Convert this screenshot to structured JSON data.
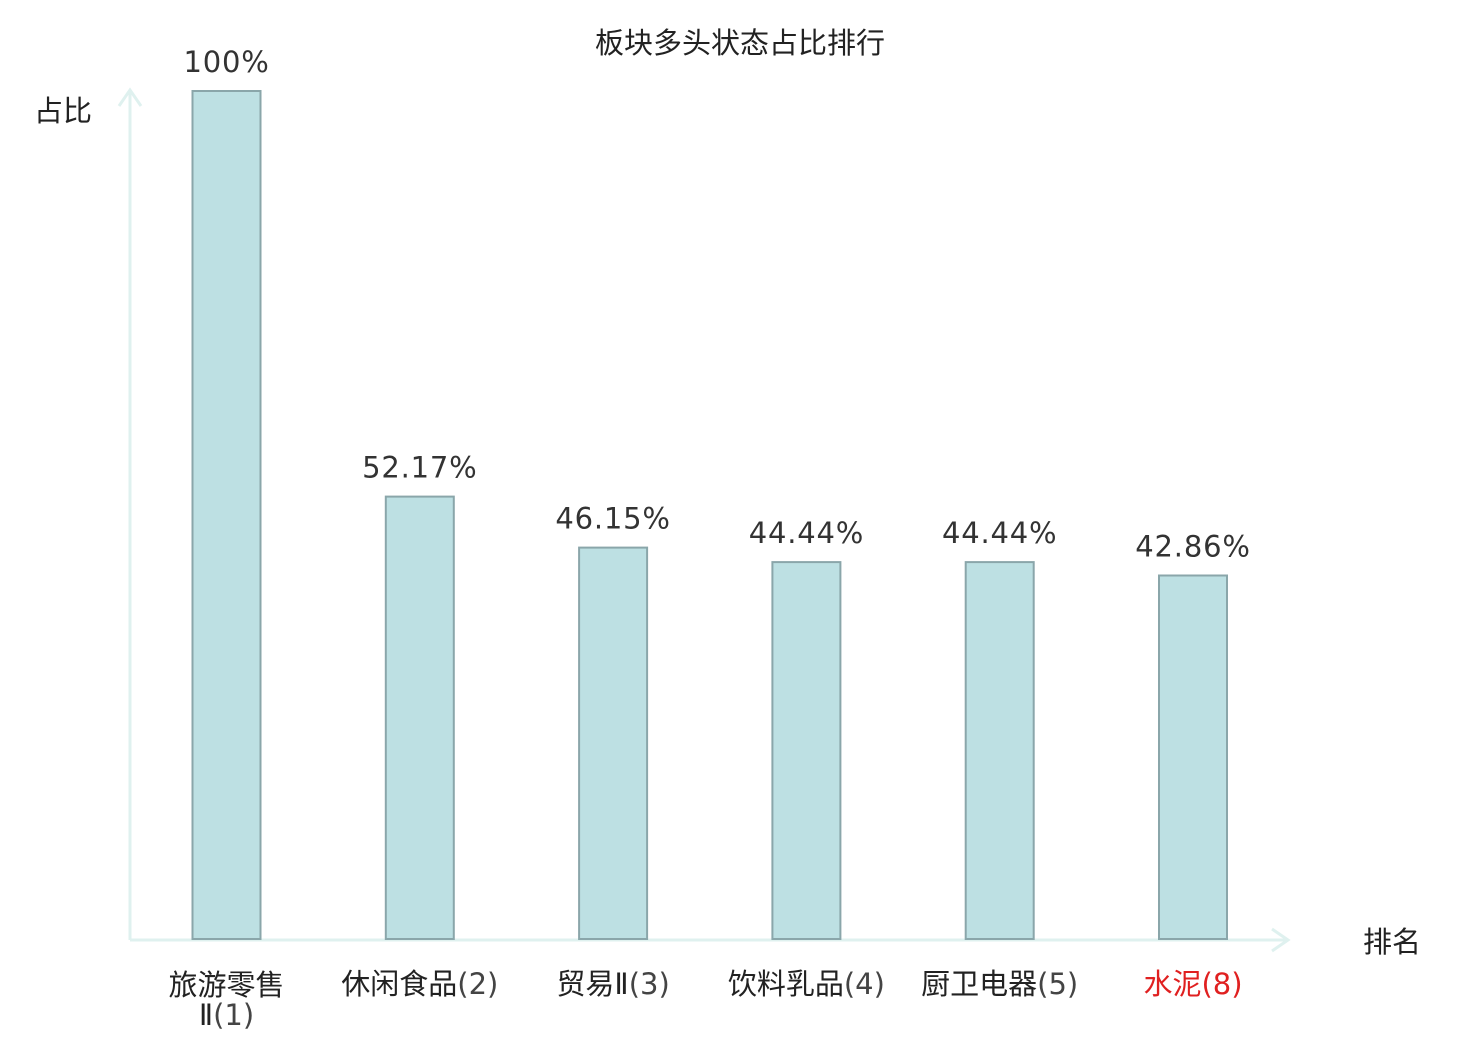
{
  "chart_data": {
    "type": "bar",
    "title": "板块多头状态占比排行",
    "ylabel": "占比",
    "xlabel": "排名",
    "ylim": [
      0,
      100
    ],
    "grid": false,
    "legend": "none",
    "categories": [
      {
        "name": "旅游零售",
        "name_line2": "Ⅱ",
        "rank": "(1)",
        "highlight": false
      },
      {
        "name": "休闲食品",
        "name_line2": "",
        "rank": "(2)",
        "highlight": false
      },
      {
        "name": "贸易Ⅱ",
        "name_line2": "",
        "rank": "(3)",
        "highlight": false
      },
      {
        "name": "饮料乳品",
        "name_line2": "",
        "rank": "(4)",
        "highlight": false
      },
      {
        "name": "厨卫电器",
        "name_line2": "",
        "rank": "(5)",
        "highlight": false
      },
      {
        "name": "水泥",
        "name_line2": "",
        "rank": "(8)",
        "highlight": true
      }
    ],
    "values": [
      100,
      52.17,
      46.15,
      44.44,
      44.44,
      42.86
    ],
    "value_labels": [
      "100%",
      "52.17%",
      "46.15%",
      "44.44%",
      "44.44%",
      "42.86%"
    ]
  },
  "colors": {
    "bar_fill": "#bde0e3",
    "bar_stroke": "#8aa6aa",
    "axis": "#dff1ef",
    "text": "#222222",
    "rank_text": "#444444",
    "highlight": "#e02020"
  }
}
